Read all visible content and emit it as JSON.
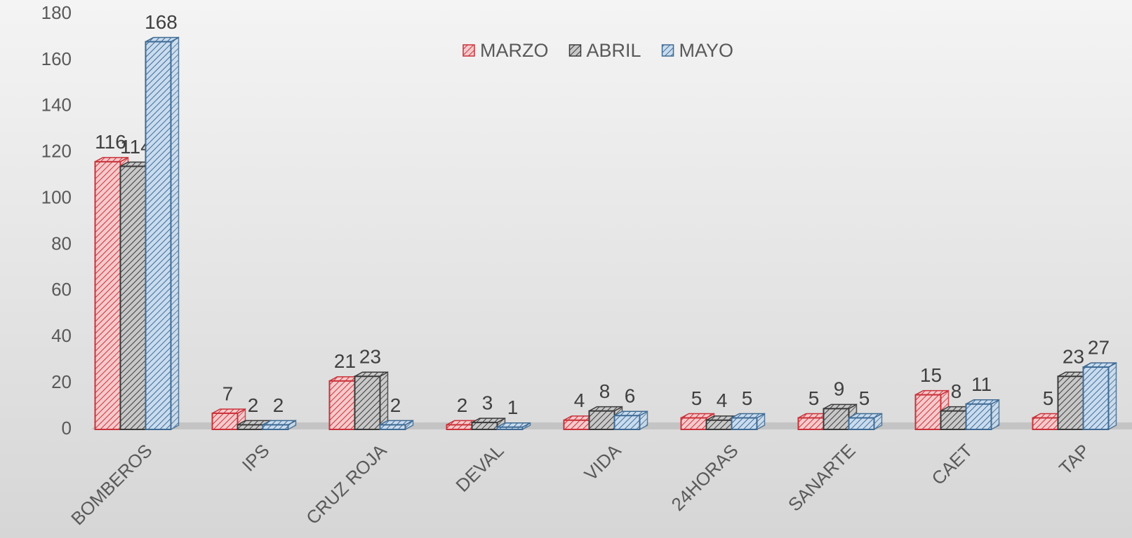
{
  "chart_data": {
    "type": "bar3d",
    "categories": [
      "BOMBEROS",
      "IPS",
      "CRUZ ROJA",
      "DEVAL",
      "VIDA",
      "24HORAS",
      "SANARTE",
      "CAET",
      "TAP"
    ],
    "series": [
      {
        "name": "MARZO",
        "color": "#c9323a",
        "values": [
          116,
          7,
          21,
          2,
          4,
          5,
          5,
          15,
          5
        ]
      },
      {
        "name": "ABRIL",
        "color": "#3a3a3a",
        "values": [
          114,
          2,
          23,
          3,
          8,
          4,
          9,
          8,
          23
        ]
      },
      {
        "name": "MAYO",
        "color": "#3f6a93",
        "values": [
          168,
          2,
          2,
          1,
          6,
          5,
          5,
          11,
          27
        ]
      }
    ],
    "ylim": [
      0,
      180
    ],
    "yticks": [
      0,
      20,
      40,
      60,
      80,
      100,
      120,
      140,
      160,
      180
    ],
    "legend": "top",
    "grid": false
  }
}
